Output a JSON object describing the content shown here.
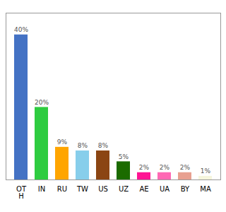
{
  "chart_data": {
    "type": "bar",
    "categories": [
      "OT\nH",
      "IN",
      "RU",
      "TW",
      "US",
      "UZ",
      "AE",
      "UA",
      "BY",
      "MA"
    ],
    "values": [
      40,
      20,
      9,
      8,
      8,
      5,
      2,
      2,
      2,
      1
    ],
    "value_labels": [
      "40%",
      "20%",
      "9%",
      "8%",
      "8%",
      "5%",
      "2%",
      "2%",
      "2%",
      "1%"
    ],
    "colors": [
      "#4472C4",
      "#2ECC40",
      "#FFA500",
      "#87CEEB",
      "#8B4513",
      "#1B6B00",
      "#FF1493",
      "#FF69B4",
      "#E8A090",
      "#F5F5DC"
    ],
    "data_labels": true,
    "ylim": [
      0,
      46
    ],
    "tick_labels": "x"
  }
}
